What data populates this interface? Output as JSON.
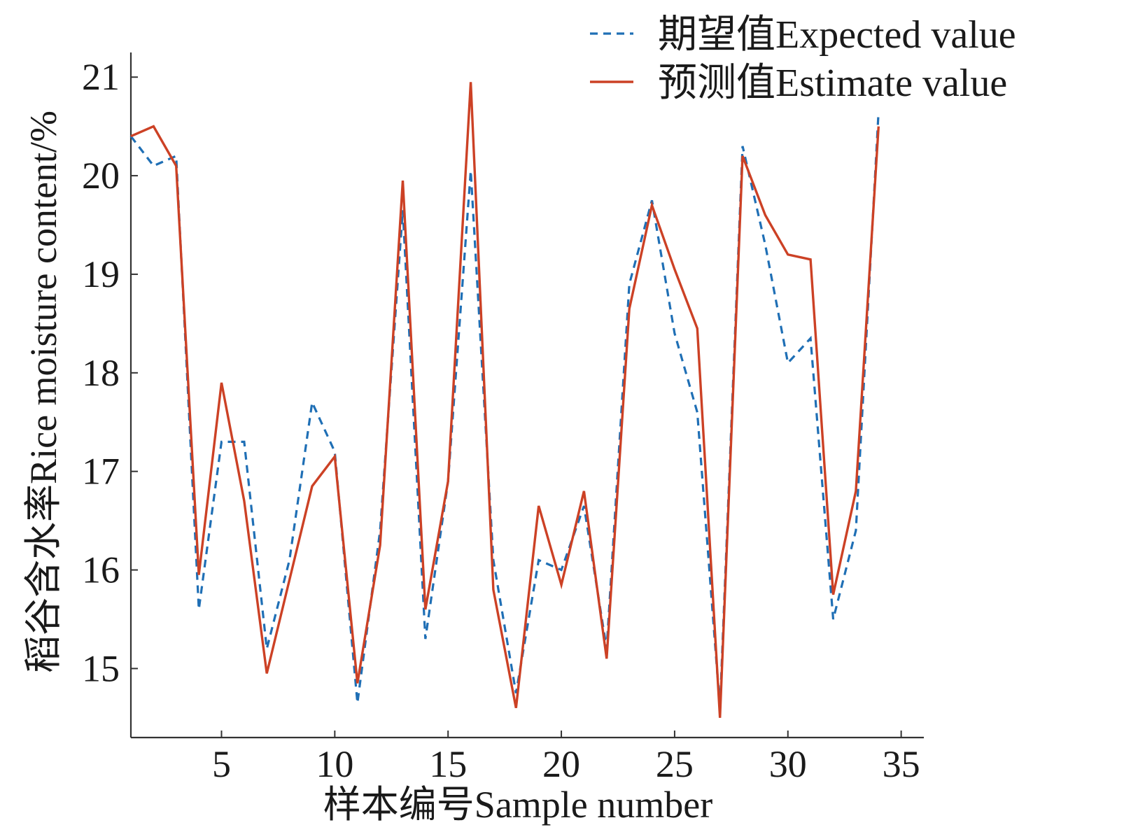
{
  "chart_data": {
    "type": "line",
    "xlabel": "样本编号Sample number",
    "ylabel": "稻谷含水率Rice moisture content/%",
    "xlim": [
      1,
      36
    ],
    "ylim": [
      14.3,
      21.25
    ],
    "x_ticks": [
      5,
      10,
      15,
      20,
      25,
      30,
      35
    ],
    "x_tick_labels": [
      "5",
      "10",
      "15",
      "20",
      "25",
      "30",
      "35"
    ],
    "y_ticks": [
      15,
      16,
      17,
      18,
      19,
      20,
      21
    ],
    "y_tick_labels": [
      "15",
      "16",
      "17",
      "18",
      "19",
      "20",
      "21"
    ],
    "grid": false,
    "legend_position": "top-right",
    "x": [
      1,
      2,
      3,
      4,
      5,
      6,
      7,
      8,
      9,
      10,
      11,
      12,
      13,
      14,
      15,
      16,
      17,
      18,
      19,
      20,
      21,
      22,
      23,
      24,
      25,
      26,
      27,
      28,
      29,
      30,
      31,
      32,
      33,
      34
    ],
    "series": [
      {
        "name": "期望值Expected value",
        "style": "dashed",
        "color": "#1f6fb5",
        "values": [
          20.4,
          20.1,
          20.2,
          15.6,
          17.3,
          17.3,
          15.2,
          16.1,
          17.7,
          17.2,
          14.65,
          16.4,
          19.65,
          15.3,
          16.9,
          20.05,
          16.1,
          14.75,
          16.1,
          16.0,
          16.65,
          15.2,
          18.9,
          19.75,
          18.4,
          17.6,
          14.6,
          20.3,
          19.3,
          18.1,
          18.35,
          15.5,
          16.4,
          20.65
        ]
      },
      {
        "name": "预测值Estimate value",
        "style": "solid",
        "color": "#cc4125",
        "values": [
          20.4,
          20.5,
          20.1,
          15.95,
          17.9,
          16.7,
          14.95,
          15.9,
          16.85,
          17.15,
          14.85,
          16.25,
          19.95,
          15.6,
          16.9,
          20.95,
          15.8,
          14.6,
          16.65,
          15.85,
          16.8,
          15.1,
          18.65,
          19.7,
          19.05,
          18.45,
          14.5,
          20.2,
          19.6,
          19.2,
          19.15,
          15.75,
          16.8,
          20.5
        ]
      }
    ]
  }
}
